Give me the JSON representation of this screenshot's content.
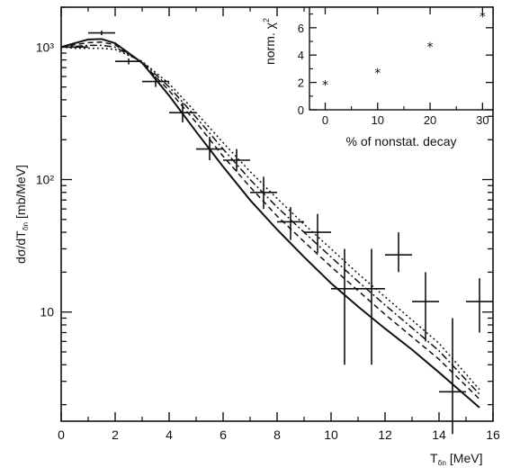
{
  "chart_data": [
    {
      "type": "line",
      "title": "",
      "xlabel": "T",
      "xlabel_sub": "ẟn",
      "xlabel_unit": "[MeV]",
      "ylabel": "dσ/dT",
      "ylabel_sub": "ẟn",
      "ylabel_unit": "[mb/MeV]",
      "xlim": [
        0,
        16
      ],
      "ylim": [
        1.5,
        2000
      ],
      "yscale": "log",
      "grid": false,
      "x_ticks": [
        0,
        2,
        4,
        6,
        8,
        10,
        12,
        14,
        16
      ],
      "x_tick_labels": [
        "0",
        "2",
        "4",
        "6",
        "8",
        "10",
        "12",
        "14",
        "16"
      ],
      "y_ticks": [
        10,
        100,
        1000
      ],
      "y_tick_labels": [
        "10",
        "10²",
        "10³"
      ],
      "data_points": {
        "x": [
          0.5,
          1.5,
          2.5,
          3.5,
          4.5,
          5.5,
          6.5,
          7.5,
          8.5,
          9.5,
          10.5,
          11.5,
          12.5,
          13.5,
          14.5,
          15.5
        ],
        "y": [
          1000,
          1280,
          780,
          550,
          320,
          170,
          140,
          80,
          48,
          40,
          15,
          15,
          27,
          12,
          2.5,
          12
        ],
        "xerr": [
          0.5,
          0.5,
          0.5,
          0.5,
          0.5,
          0.5,
          0.5,
          0.5,
          0.5,
          0.5,
          0.5,
          0.5,
          0.5,
          0.5,
          0.5,
          0.5
        ],
        "ylow": [
          1000,
          1230,
          740,
          500,
          270,
          140,
          115,
          60,
          35,
          28,
          4,
          4,
          20,
          6,
          1.2,
          7
        ],
        "yhigh": [
          1000,
          1330,
          820,
          600,
          380,
          210,
          170,
          105,
          62,
          55,
          30,
          30,
          40,
          20,
          9,
          18
        ]
      },
      "series": [
        {
          "style": "solid",
          "x": [
            0,
            0.5,
            1,
            1.5,
            2,
            3,
            4,
            5,
            6,
            7,
            8,
            9,
            10,
            11,
            12,
            13,
            14,
            15.5
          ],
          "y": [
            1000,
            1070,
            1140,
            1150,
            1070,
            760,
            430,
            230,
            125,
            70,
            42,
            26,
            16.5,
            11,
            7.5,
            5.2,
            3.5,
            1.9
          ]
        },
        {
          "style": "dashed",
          "x": [
            0,
            0.5,
            1,
            1.5,
            2,
            3,
            4,
            5,
            6,
            7,
            8,
            9,
            10,
            11,
            12,
            13,
            14,
            15.5
          ],
          "y": [
            1000,
            1040,
            1080,
            1090,
            1040,
            760,
            470,
            270,
            150,
            88,
            53,
            34,
            22,
            14.5,
            9.6,
            6.5,
            4.4,
            2.2
          ]
        },
        {
          "style": "dashdot",
          "x": [
            0,
            0.5,
            1,
            1.5,
            2,
            3,
            4,
            5,
            6,
            7,
            8,
            9,
            10,
            11,
            12,
            13,
            14,
            15.5
          ],
          "y": [
            1000,
            1010,
            1030,
            1030,
            1000,
            770,
            500,
            295,
            170,
            100,
            62,
            40,
            26,
            17,
            11.3,
            7.6,
            5.1,
            2.4
          ]
        },
        {
          "style": "dotted",
          "x": [
            0,
            0.5,
            1,
            1.5,
            2,
            3,
            4,
            5,
            6,
            7,
            8,
            9,
            10,
            11,
            12,
            13,
            14,
            15.5
          ],
          "y": [
            1000,
            980,
            980,
            980,
            960,
            780,
            530,
            320,
            190,
            115,
            72,
            46,
            30,
            19.5,
            13,
            8.7,
            5.8,
            2.6
          ]
        }
      ]
    },
    {
      "type": "scatter",
      "title": "",
      "xlabel": "% of nonstat. decay",
      "ylabel": "norm. χ",
      "ylabel_sup": "2",
      "xlim": [
        -3,
        32
      ],
      "ylim": [
        0,
        7.5
      ],
      "grid": false,
      "marker": "*",
      "x_ticks": [
        0,
        10,
        20,
        30
      ],
      "x_tick_labels": [
        "0",
        "10",
        "20",
        "30"
      ],
      "y_ticks": [
        0,
        2,
        4,
        6
      ],
      "y_tick_labels": [
        "0",
        "2",
        "4",
        "6"
      ],
      "x": [
        0,
        10,
        20,
        30
      ],
      "y": [
        1.8,
        2.7,
        4.6,
        6.8
      ]
    }
  ]
}
